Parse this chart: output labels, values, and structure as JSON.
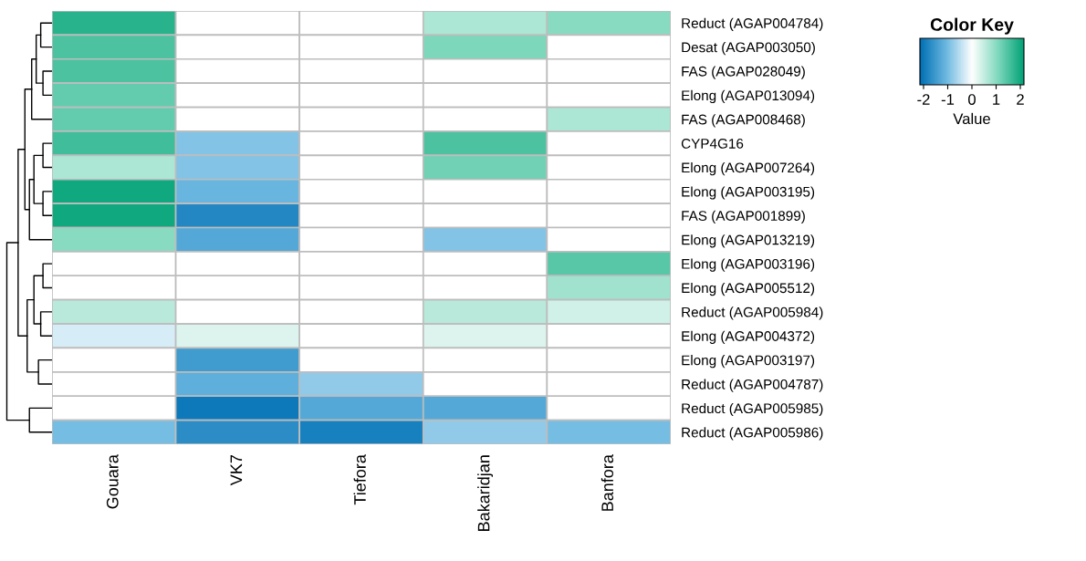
{
  "chart_data": {
    "type": "heatmap",
    "legend_title": "Color Key",
    "clabel": "Value",
    "categories": [
      "Gouara",
      "VK7",
      "Tiefora",
      "Bakaridjan",
      "Banfora"
    ],
    "y_categories": [
      "Reduct (AGAP004784)",
      "Desat (AGAP003050)",
      "FAS (AGAP028049)",
      "Elong (AGAP013094)",
      "FAS (AGAP008468)",
      "CYP4G16",
      "Elong (AGAP007264)",
      "Elong (AGAP003195)",
      "FAS (AGAP001899)",
      "Elong (AGAP013219)",
      "Elong (AGAP003196)",
      "Elong (AGAP005512)",
      "Reduct (AGAP005984)",
      "Elong (AGAP004372)",
      "Elong (AGAP003197)",
      "Reduct (AGAP004787)",
      "Reduct (AGAP005985)",
      "Reduct (AGAP005986)"
    ],
    "cells": [
      [
        1.8,
        0,
        0,
        0.7,
        1.0
      ],
      [
        1.5,
        0,
        0,
        1.1,
        0
      ],
      [
        1.5,
        0,
        0,
        0,
        0
      ],
      [
        1.3,
        0,
        0,
        0,
        0
      ],
      [
        1.3,
        0,
        0,
        0,
        0.7
      ],
      [
        1.6,
        -0.9,
        0,
        1.5,
        0
      ],
      [
        0.7,
        -0.9,
        0,
        1.2,
        0
      ],
      [
        2.0,
        -1.1,
        0,
        0,
        0
      ],
      [
        2.0,
        -1.8,
        0,
        0,
        0
      ],
      [
        1.0,
        -1.3,
        0,
        -0.9,
        0
      ],
      [
        0,
        0,
        0,
        0,
        1.4
      ],
      [
        0,
        0,
        0,
        0,
        0.8
      ],
      [
        0.6,
        0,
        0,
        0.6,
        0.4
      ],
      [
        -0.3,
        0.3,
        0,
        0.3,
        0
      ],
      [
        0,
        -1.5,
        0,
        0,
        0
      ],
      [
        0,
        -1.2,
        -0.8,
        0,
        0
      ],
      [
        0,
        -2.0,
        -1.3,
        -1.3,
        0
      ],
      [
        -1.0,
        -1.7,
        -1.9,
        -0.8,
        -1.0
      ]
    ],
    "clim": [
      -2.15,
      2.15
    ],
    "cticks": [
      -2,
      -1,
      0,
      1,
      2
    ]
  }
}
